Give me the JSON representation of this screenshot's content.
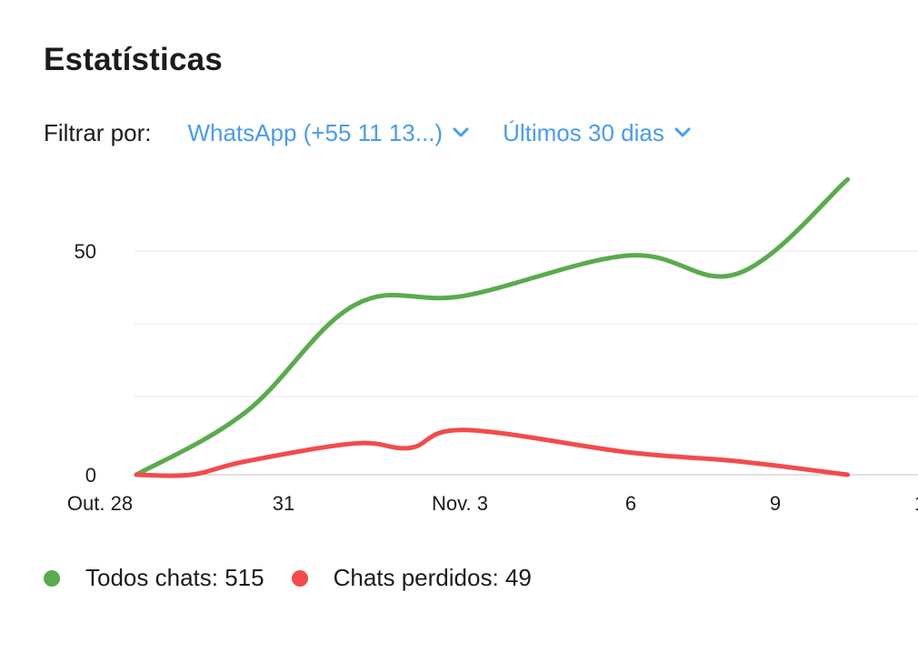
{
  "header": {
    "title": "Estatísticas"
  },
  "filters": {
    "label": "Filtrar por:",
    "channel": "WhatsApp (+55 11 13...)",
    "period": "Últimos 30 dias",
    "accent": "#4a9bf0",
    "chevron_icon": "chevron-down-icon"
  },
  "legend": {
    "all_chats": "Todos chats: 515",
    "lost_chats": "Chats perdidos: 49"
  },
  "chart_data": {
    "type": "line",
    "x_tick_labels": [
      "Out. 28",
      "31",
      "Nov. 3",
      "6",
      "9",
      "1"
    ],
    "x_tick_values": [
      0,
      3,
      6,
      9,
      12,
      15
    ],
    "y_tick_labels": [
      "0",
      "50"
    ],
    "y_tick_values": [
      0,
      50
    ],
    "ylim": [
      0,
      70
    ],
    "grid": "horizontal",
    "series": [
      {
        "name": "Todos chats",
        "color": "#5aab4d",
        "x": [
          0,
          2,
          4,
          6,
          9,
          11,
          13
        ],
        "y": [
          0,
          14,
          38,
          40,
          49,
          45,
          66
        ]
      },
      {
        "name": "Chats perdidos",
        "color": "#f24b4b",
        "x": [
          0,
          1,
          2,
          4,
          5,
          6,
          9,
          11,
          13
        ],
        "y": [
          0,
          0,
          3,
          7,
          6,
          10,
          5,
          3,
          0
        ]
      }
    ]
  }
}
